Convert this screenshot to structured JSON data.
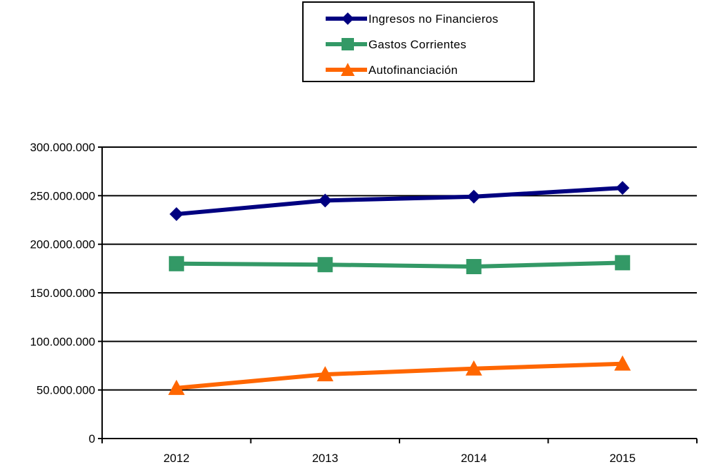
{
  "chart_data": {
    "type": "line",
    "title": "",
    "xlabel": "",
    "ylabel": "",
    "categories": [
      "2012",
      "2013",
      "2014",
      "2015"
    ],
    "ylim": [
      0,
      300000000
    ],
    "yticks": [
      0,
      50000000,
      100000000,
      150000000,
      200000000,
      250000000,
      300000000
    ],
    "ytick_labels": [
      "0",
      "50.000.000",
      "100.000.000",
      "150.000.000",
      "200.000.000",
      "250.000.000",
      "300.000.000"
    ],
    "grid": true,
    "legend_position": "top-center",
    "series": [
      {
        "name": "Ingresos no Financieros",
        "values": [
          231000000,
          245000000,
          249000000,
          258000000
        ],
        "color": "#000080",
        "marker": "diamond"
      },
      {
        "name": "Gastos Corrientes",
        "values": [
          180000000,
          179000000,
          177000000,
          181000000
        ],
        "color": "#339966",
        "marker": "square"
      },
      {
        "name": "Autofinanciación",
        "values": [
          52000000,
          66000000,
          72000000,
          77000000
        ],
        "color": "#ff6600",
        "marker": "triangle"
      }
    ]
  }
}
